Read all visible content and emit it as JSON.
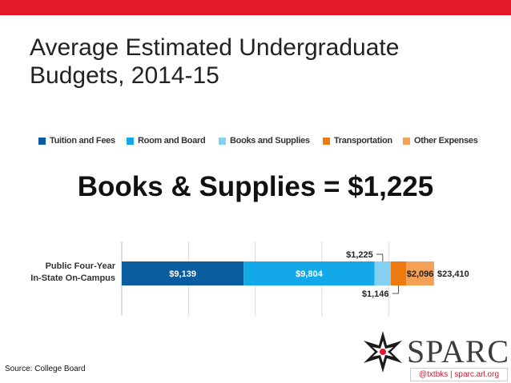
{
  "colors": {
    "accent": "#e3182b",
    "tuition": "#0a5c9e",
    "room": "#13a9e8",
    "books": "#84d0f2",
    "transport": "#ec7a10",
    "other": "#f4a055",
    "label_dark": "#222222"
  },
  "slide": {
    "title": "Average Estimated Undergraduate Budgets, 2014-15",
    "callout": "Books & Supplies = $1,225",
    "source": "Source: College Board"
  },
  "logo": {
    "text": "SPARC",
    "tagline": "@txtbks | sparc.arl.org",
    "mark_icon": "sparc-star-icon"
  },
  "chart_data": {
    "type": "bar",
    "orientation": "horizontal",
    "stacked": true,
    "categories": [
      "Public Four-Year In-State On-Campus"
    ],
    "category_lines": [
      "Public Four-Year",
      "In-State On-Campus"
    ],
    "series": [
      {
        "name": "Tuition and Fees",
        "values": [
          9139
        ],
        "label": "$9,139",
        "color": "#0a5c9e"
      },
      {
        "name": "Room and Board",
        "values": [
          9804
        ],
        "label": "$9,804",
        "color": "#13a9e8"
      },
      {
        "name": "Books and Supplies",
        "values": [
          1225
        ],
        "label": "$1,225",
        "color": "#84d0f2"
      },
      {
        "name": "Transportation",
        "values": [
          1146
        ],
        "label": "$1,146",
        "color": "#ec7a10"
      },
      {
        "name": "Other Expenses",
        "values": [
          2096
        ],
        "label": "$2,096",
        "color": "#f4a055"
      }
    ],
    "totals": [
      23410
    ],
    "total_label": "$23,410",
    "xlim": [
      0,
      24000
    ],
    "grid": true,
    "legend_position": "top"
  }
}
